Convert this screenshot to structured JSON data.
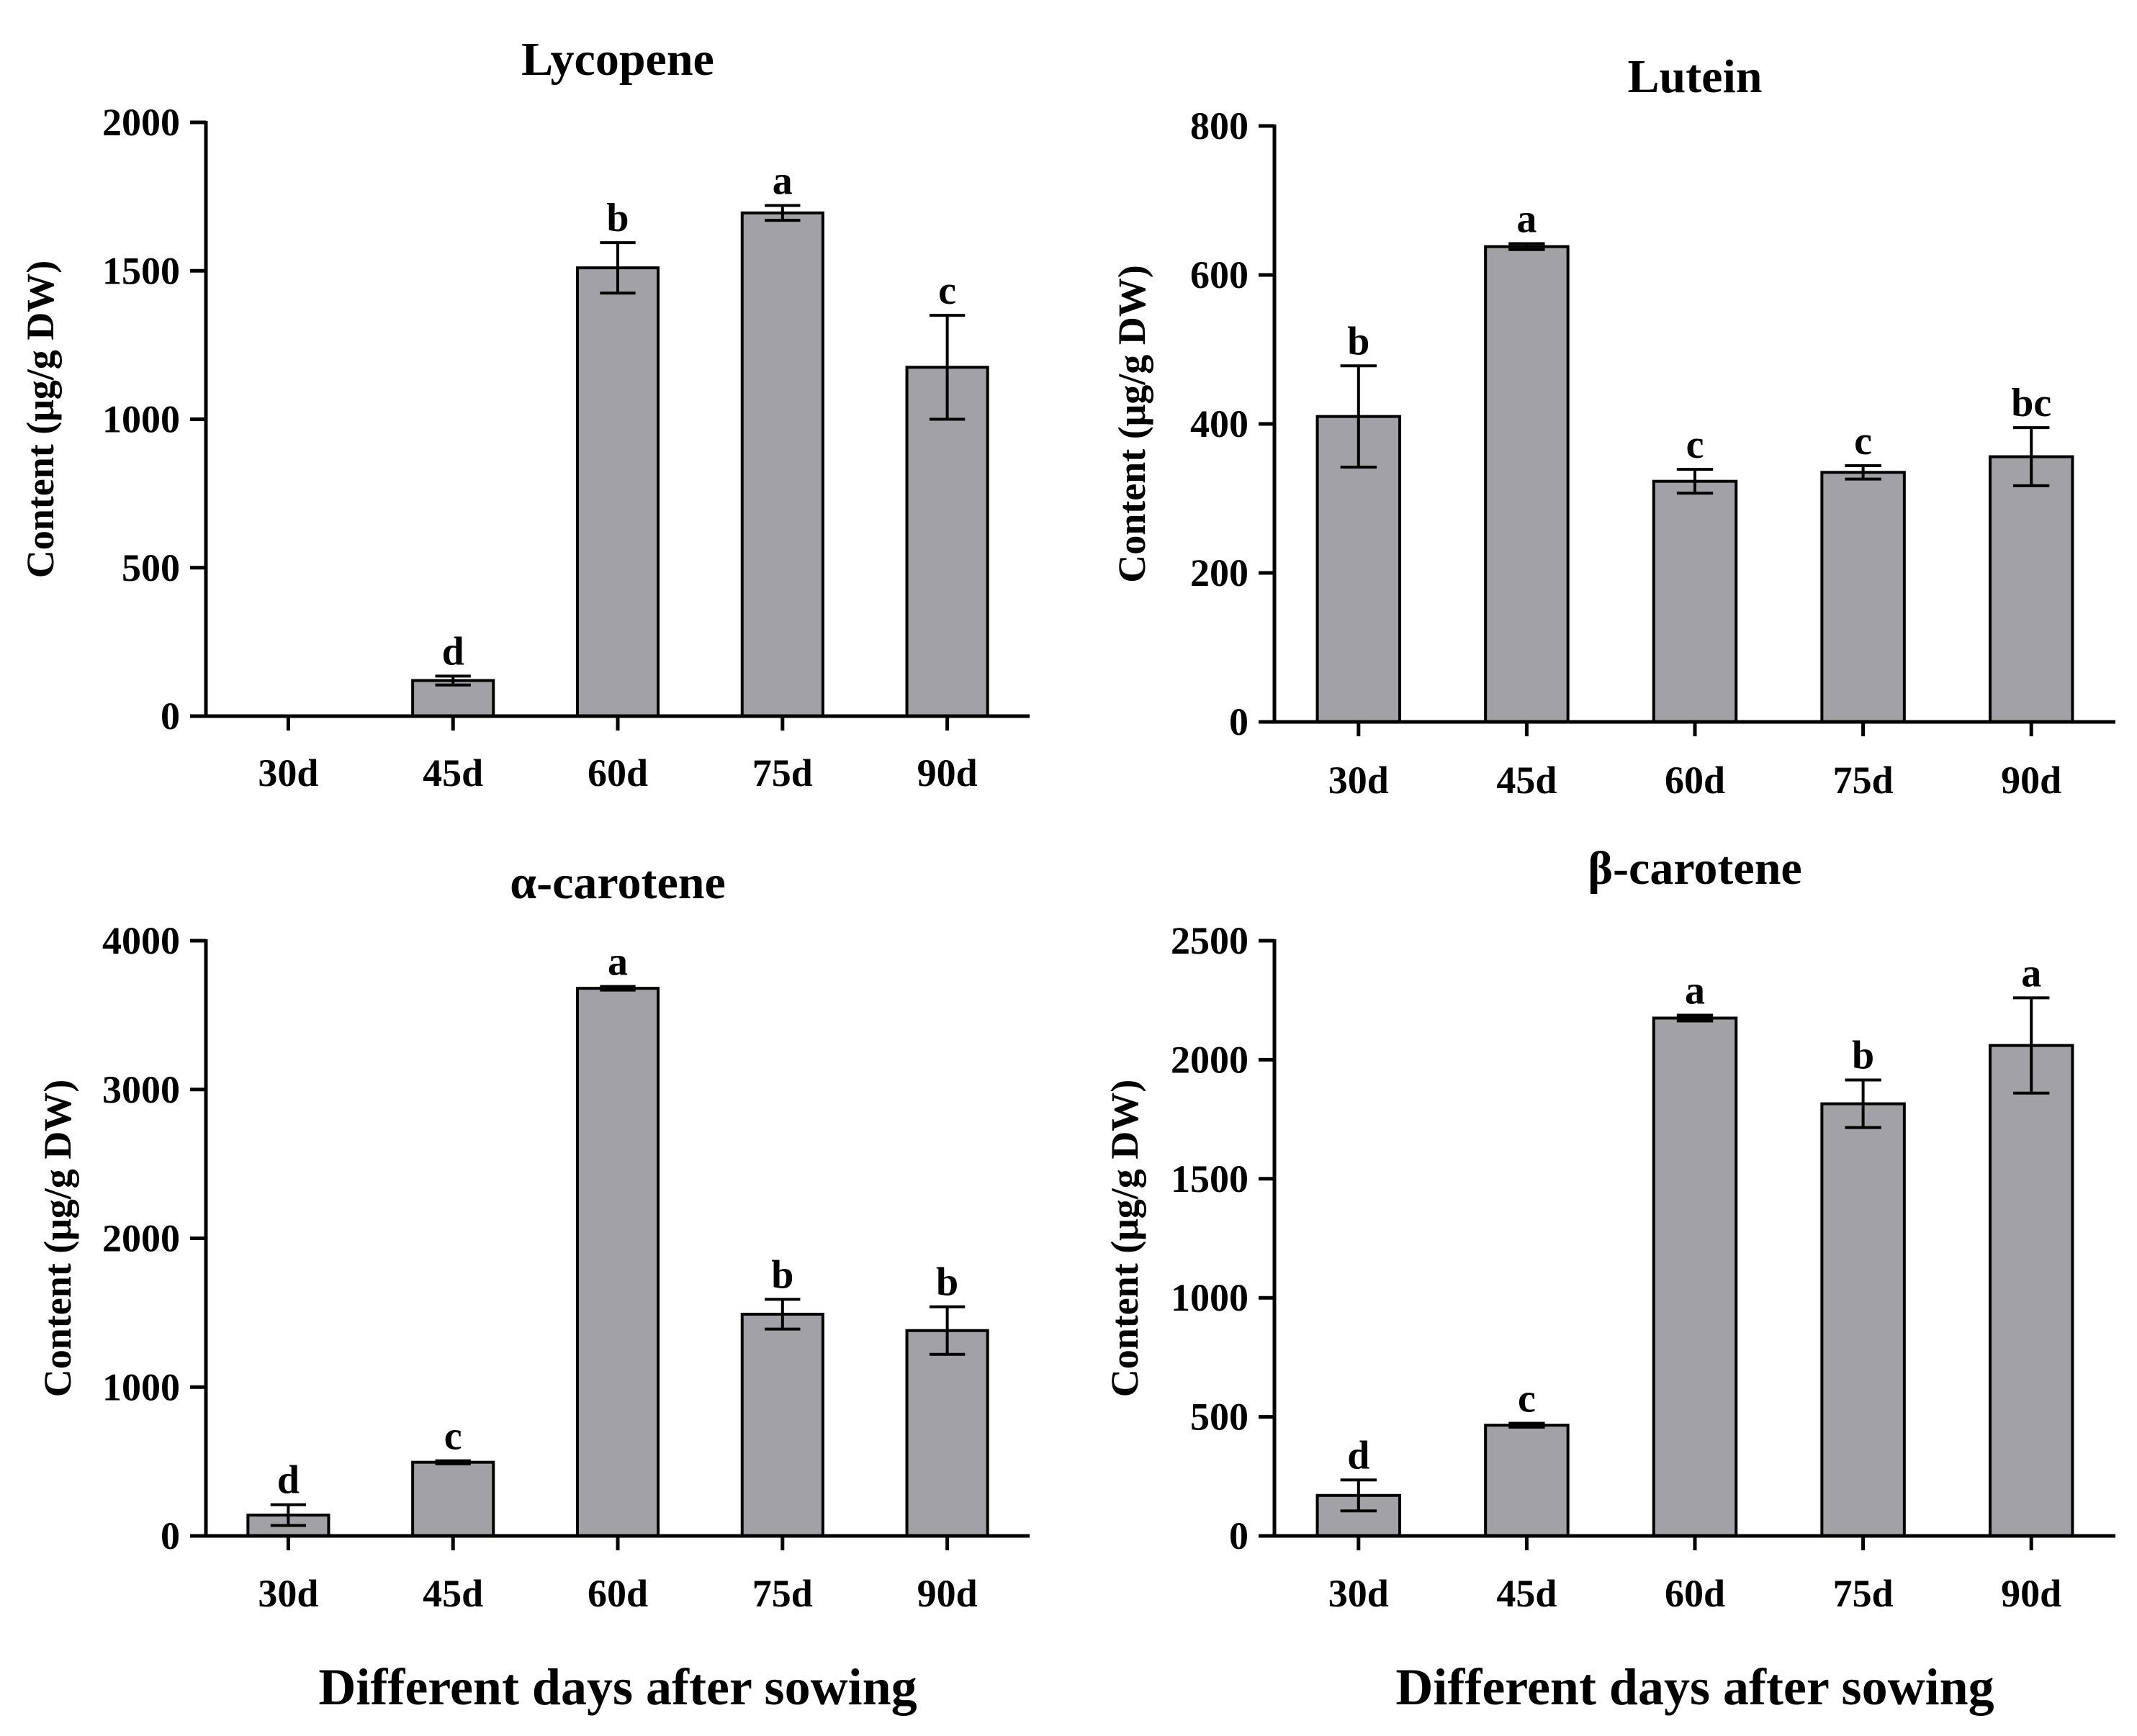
{
  "figure": {
    "bar_color": "#a2a1a6",
    "axis_color": "#000000"
  },
  "chart_data": [
    {
      "type": "bar",
      "title": "Lycopene",
      "ylabel": "Content  (μg/g DW)",
      "xlabel": "Different days after sowing",
      "categories": [
        "30d",
        "45d",
        "60d",
        "75d",
        "90d"
      ],
      "values": [
        0,
        120,
        1510,
        1695,
        1175
      ],
      "errors": [
        0,
        15,
        85,
        25,
        175
      ],
      "significance": [
        "",
        "d",
        "b",
        "a",
        "c"
      ],
      "ylim": [
        0,
        2000
      ],
      "yticks": [
        0,
        500,
        1000,
        1500,
        2000
      ]
    },
    {
      "type": "bar",
      "title": "Lutein",
      "ylabel": "Content (μg/g DW)",
      "xlabel": "Different days after sowing",
      "categories": [
        "30d",
        "45d",
        "60d",
        "75d",
        "90d"
      ],
      "values": [
        410,
        638,
        323,
        335,
        356
      ],
      "errors": [
        68,
        4,
        16,
        9,
        39
      ],
      "significance": [
        "b",
        "a",
        "c",
        "c",
        "bc"
      ],
      "ylim": [
        0,
        800
      ],
      "yticks": [
        0,
        200,
        400,
        600,
        800
      ]
    },
    {
      "type": "bar",
      "title": "α-carotene",
      "ylabel": "Content (μg/g DW)",
      "xlabel": "Different days after sowing",
      "categories": [
        "30d",
        "45d",
        "60d",
        "75d",
        "90d"
      ],
      "values": [
        140,
        495,
        3680,
        1490,
        1380
      ],
      "errors": [
        70,
        10,
        12,
        100,
        160
      ],
      "significance": [
        "d",
        "c",
        "a",
        "b",
        "b"
      ],
      "ylim": [
        0,
        4000
      ],
      "yticks": [
        0,
        1000,
        2000,
        3000,
        4000
      ]
    },
    {
      "type": "bar",
      "title": "β-carotene",
      "ylabel": "Content (μg/g DW)",
      "xlabel": "Different days after sowing",
      "categories": [
        "30d",
        "45d",
        "60d",
        "75d",
        "90d"
      ],
      "values": [
        170,
        465,
        2175,
        1815,
        2060
      ],
      "errors": [
        65,
        8,
        12,
        100,
        200
      ],
      "significance": [
        "d",
        "c",
        "a",
        "b",
        "a"
      ],
      "ylim": [
        0,
        2500
      ],
      "yticks": [
        0,
        500,
        1000,
        1500,
        2000,
        2500
      ]
    }
  ]
}
